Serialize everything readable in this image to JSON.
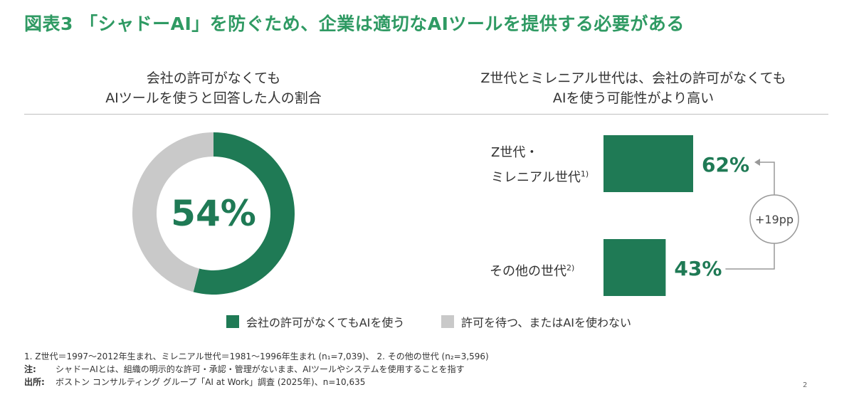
{
  "title": "図表3 「シャドーAI」を防ぐため、企業は適切なAIツールを提供する必要がある",
  "left_panel": {
    "title_line1": "会社の許可がなくても",
    "title_line2": "AIツールを使うと回答した人の割合"
  },
  "right_panel": {
    "title_line1": "Z世代とミレニアル世代は、会社の許可がなくても",
    "title_line2": "AIを使う可能性がより高い"
  },
  "colors": {
    "green": "#1f7a55",
    "gray": "#c9c9c9",
    "title_green": "#2f9a63"
  },
  "chart_data": [
    {
      "type": "pie",
      "slices": [
        {
          "label": "会社の許可がなくてもAIを使う",
          "value": 54
        },
        {
          "label": "許可を待つ、またはAIを使わない",
          "value": 46
        }
      ],
      "center_label": "54%"
    },
    {
      "type": "bar",
      "categories": [
        "Z世代・ミレニアル世代1)",
        "その他の世代2)"
      ],
      "values": [
        62,
        43
      ],
      "value_labels": [
        "62%",
        "43%"
      ],
      "difference_label": "+19pp"
    }
  ],
  "bar_labels": {
    "gen_z_line1": "Z世代・",
    "gen_z_line2": "ミレニアル世代",
    "gen_z_sup": "1)",
    "other": "その他の世代",
    "other_sup": "2)"
  },
  "legend": {
    "item1": "会社の許可がなくてもAIを使う",
    "item2": "許可を待つ、またはAIを使わない"
  },
  "notes": {
    "line1": "1. Z世代＝1997〜2012年生まれ、ミレニアル世代＝1981〜1996年生まれ (n₁=7,039)、 2. その他の世代 (n₂=3,596)",
    "note_lead": "注:",
    "note_text": "シャドーAIとは、組織の明示的な許可・承認・管理がないまま、AIツールやシステムを使用することを指す",
    "source_lead": "出所:",
    "source_text": "ボストン コンサルティング グループ「AI at Work」調査 (2025年)、n=10,635"
  },
  "page_number": "2"
}
